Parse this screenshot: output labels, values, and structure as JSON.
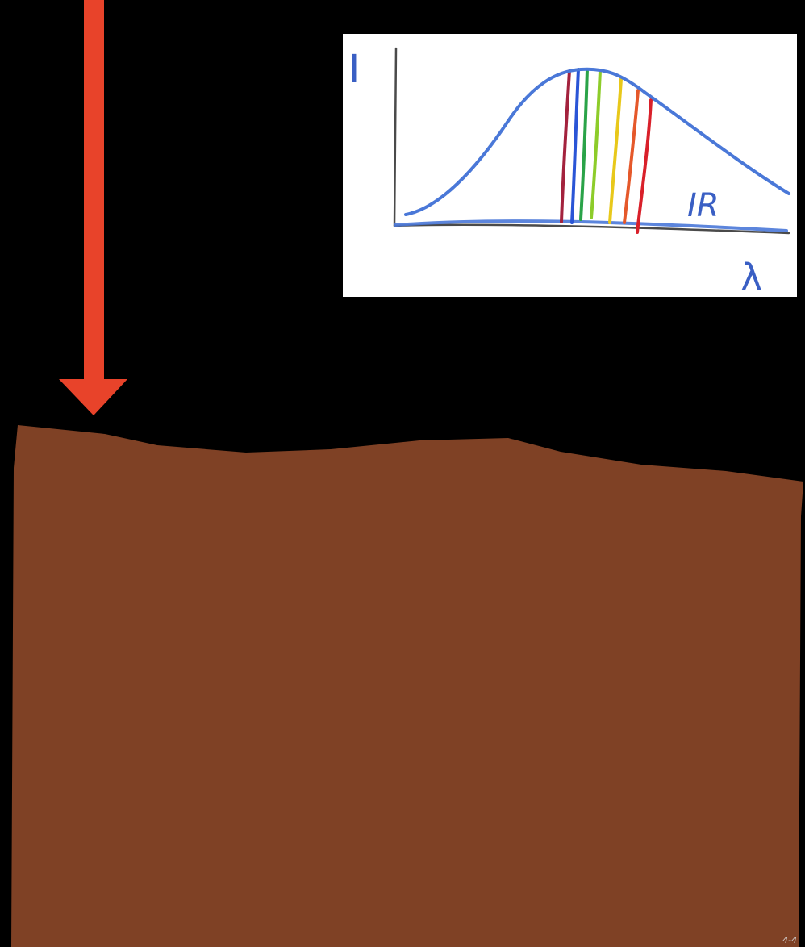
{
  "colors": {
    "background": "#000000",
    "sunlight_arrow": "#e8432a",
    "ground": "#7f4125",
    "inset_background": "#ffffff",
    "curve": "#4a78d8",
    "axis": "#555555",
    "label": "#3a5fc4"
  },
  "inset": {
    "y_axis_label": "I",
    "x_axis_label": "λ",
    "infrared_label": "IR",
    "curve_shape": "single-peak intensity spectrum with long tail toward longer wavelengths",
    "visible_band_colors": [
      "#a3223d",
      "#2a55d6",
      "#2aa348",
      "#8dcc2a",
      "#e8c81a",
      "#e5582a",
      "#d9202a"
    ]
  },
  "icons": {
    "arrow": "down-arrow-icon"
  },
  "slide_number": "4-4"
}
